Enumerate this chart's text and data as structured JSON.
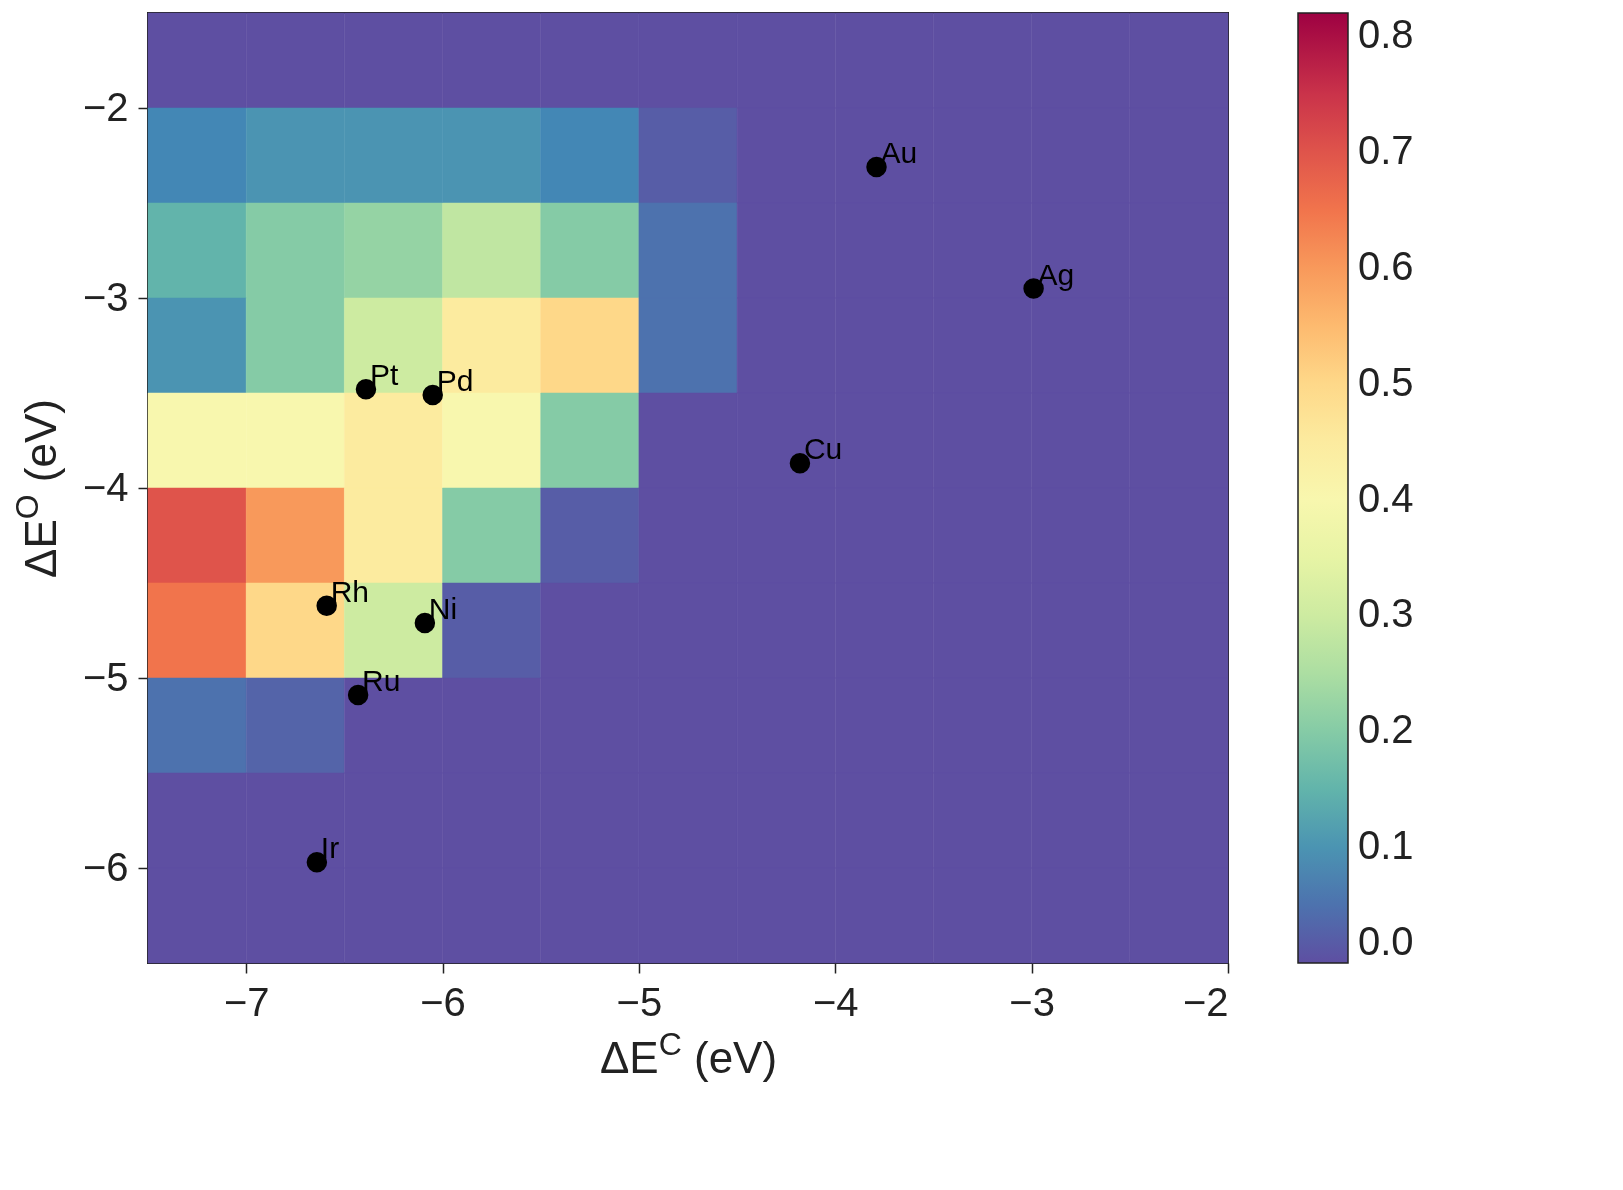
{
  "chart_data": {
    "type": "heatmap",
    "xlabel": "ΔE$^{C}$ (eV)",
    "ylabel": "ΔE$^{O}$ (eV)",
    "x": [
      -7.25,
      -6.75,
      -6.25,
      -5.75,
      -5.25,
      -4.75,
      -4.25,
      -3.75,
      -3.25,
      -2.75,
      -2.25
    ],
    "y": [
      -1.75,
      -2.25,
      -2.75,
      -3.25,
      -3.75,
      -4.25,
      -4.75,
      -5.25,
      -5.75,
      -6.25
    ],
    "cells": [
      [
        0,
        0,
        0,
        0,
        0,
        0,
        0,
        0,
        0,
        0,
        0
      ],
      [
        0.08,
        0.1,
        0.1,
        0.1,
        0.08,
        0.02,
        0,
        0,
        0,
        0,
        0
      ],
      [
        0.15,
        0.2,
        0.22,
        0.28,
        0.2,
        0.05,
        0,
        0,
        0,
        0,
        0
      ],
      [
        0.1,
        0.2,
        0.3,
        0.45,
        0.5,
        0.05,
        0,
        0,
        0,
        0,
        0
      ],
      [
        0.4,
        0.4,
        0.45,
        0.4,
        0.2,
        0,
        0,
        0,
        0,
        0,
        0
      ],
      [
        0.7,
        0.6,
        0.45,
        0.2,
        0.02,
        0,
        0,
        0,
        0,
        0,
        0
      ],
      [
        0.65,
        0.5,
        0.3,
        0.02,
        0,
        0,
        0,
        0,
        0,
        0,
        0
      ],
      [
        0.05,
        0.03,
        0,
        0,
        0,
        0,
        0,
        0,
        0,
        0,
        0
      ],
      [
        0,
        0,
        0,
        0,
        0,
        0,
        0,
        0,
        0,
        0,
        0
      ],
      [
        0,
        0,
        0,
        0,
        0,
        0,
        0,
        0,
        0,
        0,
        0
      ]
    ],
    "clim": [
      0,
      0.82
    ],
    "cticks": [
      {
        "value": 0,
        "label": "0.0"
      },
      0.1,
      0.2,
      0.3,
      0.4,
      0.5,
      0.6,
      0.7,
      0.8
    ],
    "xlim": [
      -7.5,
      -2
    ],
    "xticks": [
      -7,
      -6,
      -5,
      -4,
      -3,
      -2
    ],
    "ylim": [
      -6.5,
      -1.5
    ],
    "yticks": [
      -6,
      -5,
      -4,
      -3,
      -2
    ],
    "series": [
      {
        "type": "scatter",
        "color": "#000000",
        "marker": "circle",
        "x": [
          -3.79,
          -2.99,
          -6.39,
          -6.05,
          -4.18,
          -6.59,
          -6.09,
          -6.43,
          -6.64
        ],
        "values": [
          -2.31,
          -2.95,
          -3.48,
          -3.51,
          -3.87,
          -4.62,
          -4.71,
          -5.09,
          -5.97
        ]
      }
    ],
    "annotations": [
      {
        "text": "Au",
        "x": -3.79,
        "y": -2.31
      },
      {
        "text": "Ag",
        "x": -2.99,
        "y": -2.95
      },
      {
        "text": "Pt",
        "x": -6.39,
        "y": -3.48
      },
      {
        "text": "Pd",
        "x": -6.05,
        "y": -3.51
      },
      {
        "text": "Cu",
        "x": -4.18,
        "y": -3.87
      },
      {
        "text": "Rh",
        "x": -6.59,
        "y": -4.62
      },
      {
        "text": "Ni",
        "x": -6.09,
        "y": -4.71
      },
      {
        "text": "Ru",
        "x": -6.43,
        "y": -5.09
      },
      {
        "text": "Ir",
        "x": -6.64,
        "y": -5.97
      }
    ],
    "grid": false
  }
}
